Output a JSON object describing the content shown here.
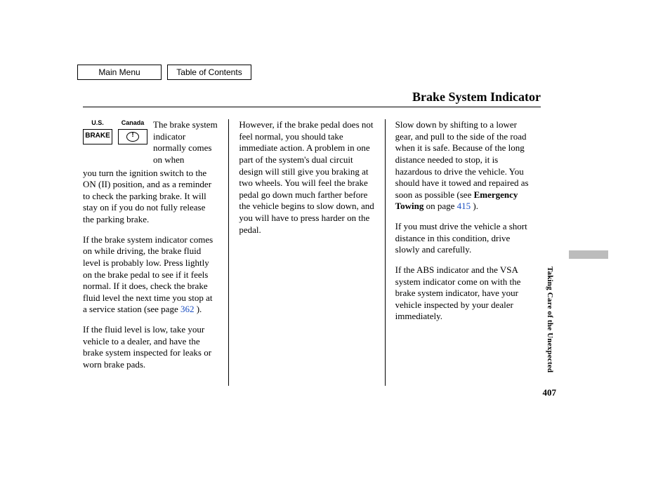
{
  "nav": {
    "main_menu_label": "Main Menu",
    "toc_label": "Table of Contents"
  },
  "title": "Brake System Indicator",
  "indicators": {
    "us_label": "U.S.",
    "canada_label": "Canada",
    "us_text": "BRAKE"
  },
  "col1": {
    "intro": "The brake system indicator normally comes on when",
    "p1_rest": "you turn the ignition switch to the ON (II) position, and as a reminder to check the parking brake. It will stay on if you do not fully release the parking brake.",
    "p2a": "If the brake system indicator comes on while driving, the brake fluid level is probably low. Press lightly on the brake pedal to see if it feels normal. If it does, check the brake fluid level the next time you stop at a service station (see page ",
    "p2_link": "362",
    "p2b": " ).",
    "p3": "If the fluid level is low, take your vehicle to a dealer, and have the brake system inspected for leaks or worn brake pads."
  },
  "col2": {
    "p1": "However, if the brake pedal does not feel normal, you should take immediate action. A problem in one part of the system's dual circuit design will still give you braking at two wheels. You will feel the brake pedal go down much farther before the vehicle begins to slow down, and you will have to press harder on the pedal."
  },
  "col3": {
    "p1a": "Slow down by shifting to a lower gear, and pull to the side of the road when it is safe. Because of the long distance needed to stop, it is hazardous to drive the vehicle. You should have it towed and repaired as soon as possible (see ",
    "p1_bold": "Emergency Towing",
    "p1b": " on page ",
    "p1_link": "415",
    "p1c": " ).",
    "p2": "If you must drive the vehicle a short distance in this condition, drive slowly and carefully.",
    "p3": "If the ABS indicator and the VSA system indicator come on with the brake system indicator, have your vehicle inspected by your dealer immediately."
  },
  "side_text": "Taking Care of the Unexpected",
  "page_number": "407"
}
